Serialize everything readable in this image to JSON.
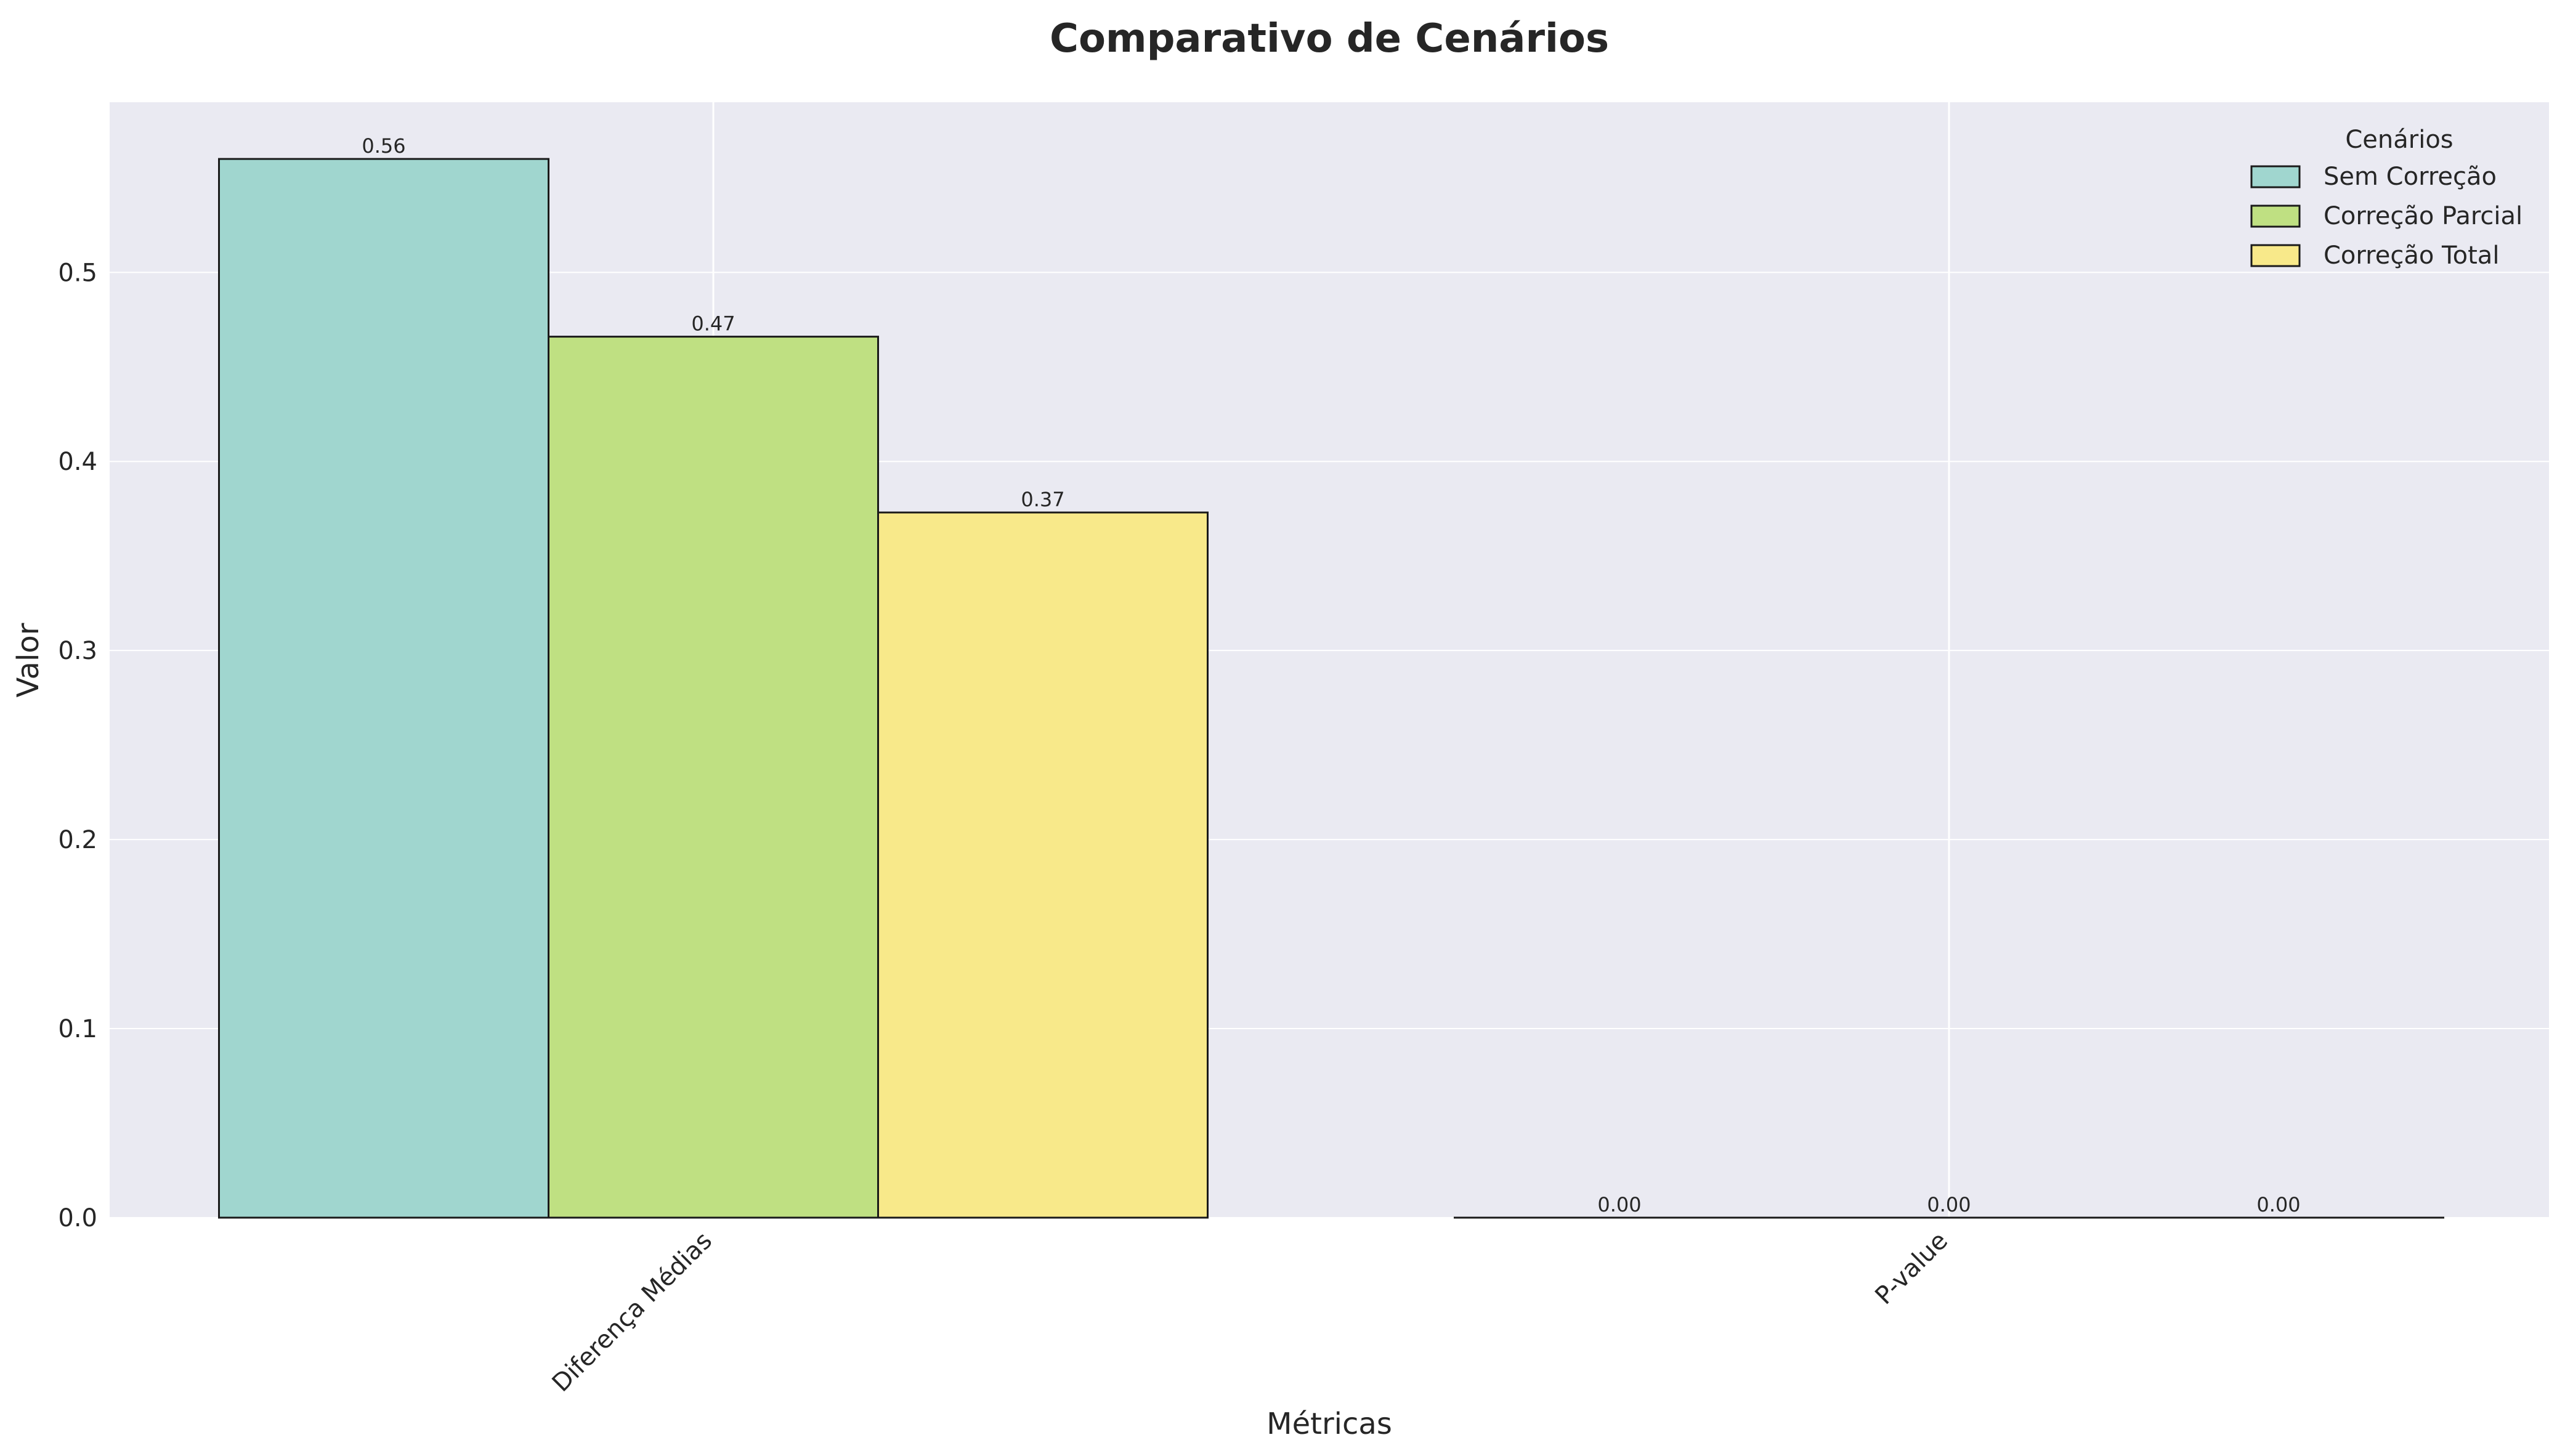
{
  "chart_data": {
    "type": "bar",
    "title": "Comparativo de Cenários",
    "xlabel": "Métricas",
    "ylabel": "Valor",
    "categories": [
      "Diferença Médias",
      "P-value"
    ],
    "series": [
      {
        "name": "Sem Correção",
        "values": [
          0.56,
          0.0
        ],
        "labels": [
          "0.56",
          "0.00"
        ],
        "color": "#a0d6cf"
      },
      {
        "name": "Correção Parcial",
        "values": [
          0.466,
          0.0
        ],
        "labels": [
          "0.47",
          "0.00"
        ],
        "color": "#bfe082"
      },
      {
        "name": "Correção Total",
        "values": [
          0.373,
          0.0
        ],
        "labels": [
          "0.37",
          "0.00"
        ],
        "color": "#f8e98a"
      }
    ],
    "ylim": [
      0,
      0.59
    ],
    "yticks": [
      0.0,
      0.1,
      0.2,
      0.3,
      0.4,
      0.5
    ],
    "ytick_labels": [
      "0.0",
      "0.1",
      "0.2",
      "0.3",
      "0.4",
      "0.5"
    ],
    "legend": {
      "title": "Cenários",
      "placement": "top-right"
    },
    "grid": true,
    "background_color": "#eaeaf2",
    "edge_color": "#1a1a1a"
  }
}
